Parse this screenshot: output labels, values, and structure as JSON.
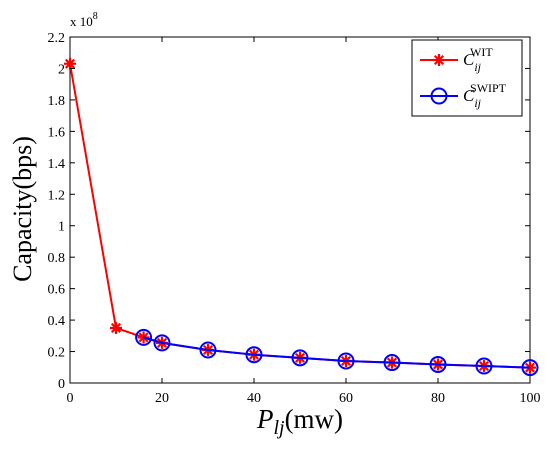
{
  "chart_data": {
    "type": "line",
    "ylabel": "Capacity(bps)",
    "xlabel": {
      "main": "P",
      "sub": "lj",
      "unit": "(mw)"
    },
    "y_multiplier": {
      "base": "x 10",
      "exp": "8"
    },
    "xlim": [
      0,
      100
    ],
    "ylim": [
      0,
      2.2
    ],
    "x_ticks": [
      0,
      20,
      40,
      60,
      80,
      100
    ],
    "y_ticks": [
      0,
      0.2,
      0.4,
      0.6,
      0.8,
      1,
      1.2,
      1.4,
      1.6,
      1.8,
      2,
      2.2
    ],
    "y_tick_labels": [
      "0",
      "0.2",
      "0.4",
      "0.6",
      "0.8",
      "1",
      "1.2",
      "1.4",
      "1.6",
      "1.8",
      "2",
      "2.2"
    ],
    "grid": false,
    "legend_position": "top-right",
    "series": [
      {
        "name_main": "C",
        "name_sub": "ij",
        "name_sup": "WIT",
        "color": "#ff0000",
        "marker": "star",
        "x": [
          0,
          10,
          16,
          20,
          30,
          40,
          50,
          60,
          70,
          80,
          90,
          100
        ],
        "y": [
          2.03,
          0.35,
          0.29,
          0.255,
          0.21,
          0.18,
          0.16,
          0.14,
          0.13,
          0.118,
          0.108,
          0.098
        ]
      },
      {
        "name_main": "C",
        "name_sub": "ij",
        "name_sup": "SWIPT",
        "color": "#0000ff",
        "marker": "circle",
        "x": [
          16,
          20,
          30,
          40,
          50,
          60,
          70,
          80,
          90,
          100
        ],
        "y": [
          0.29,
          0.255,
          0.21,
          0.18,
          0.16,
          0.14,
          0.13,
          0.118,
          0.108,
          0.098
        ]
      }
    ]
  }
}
